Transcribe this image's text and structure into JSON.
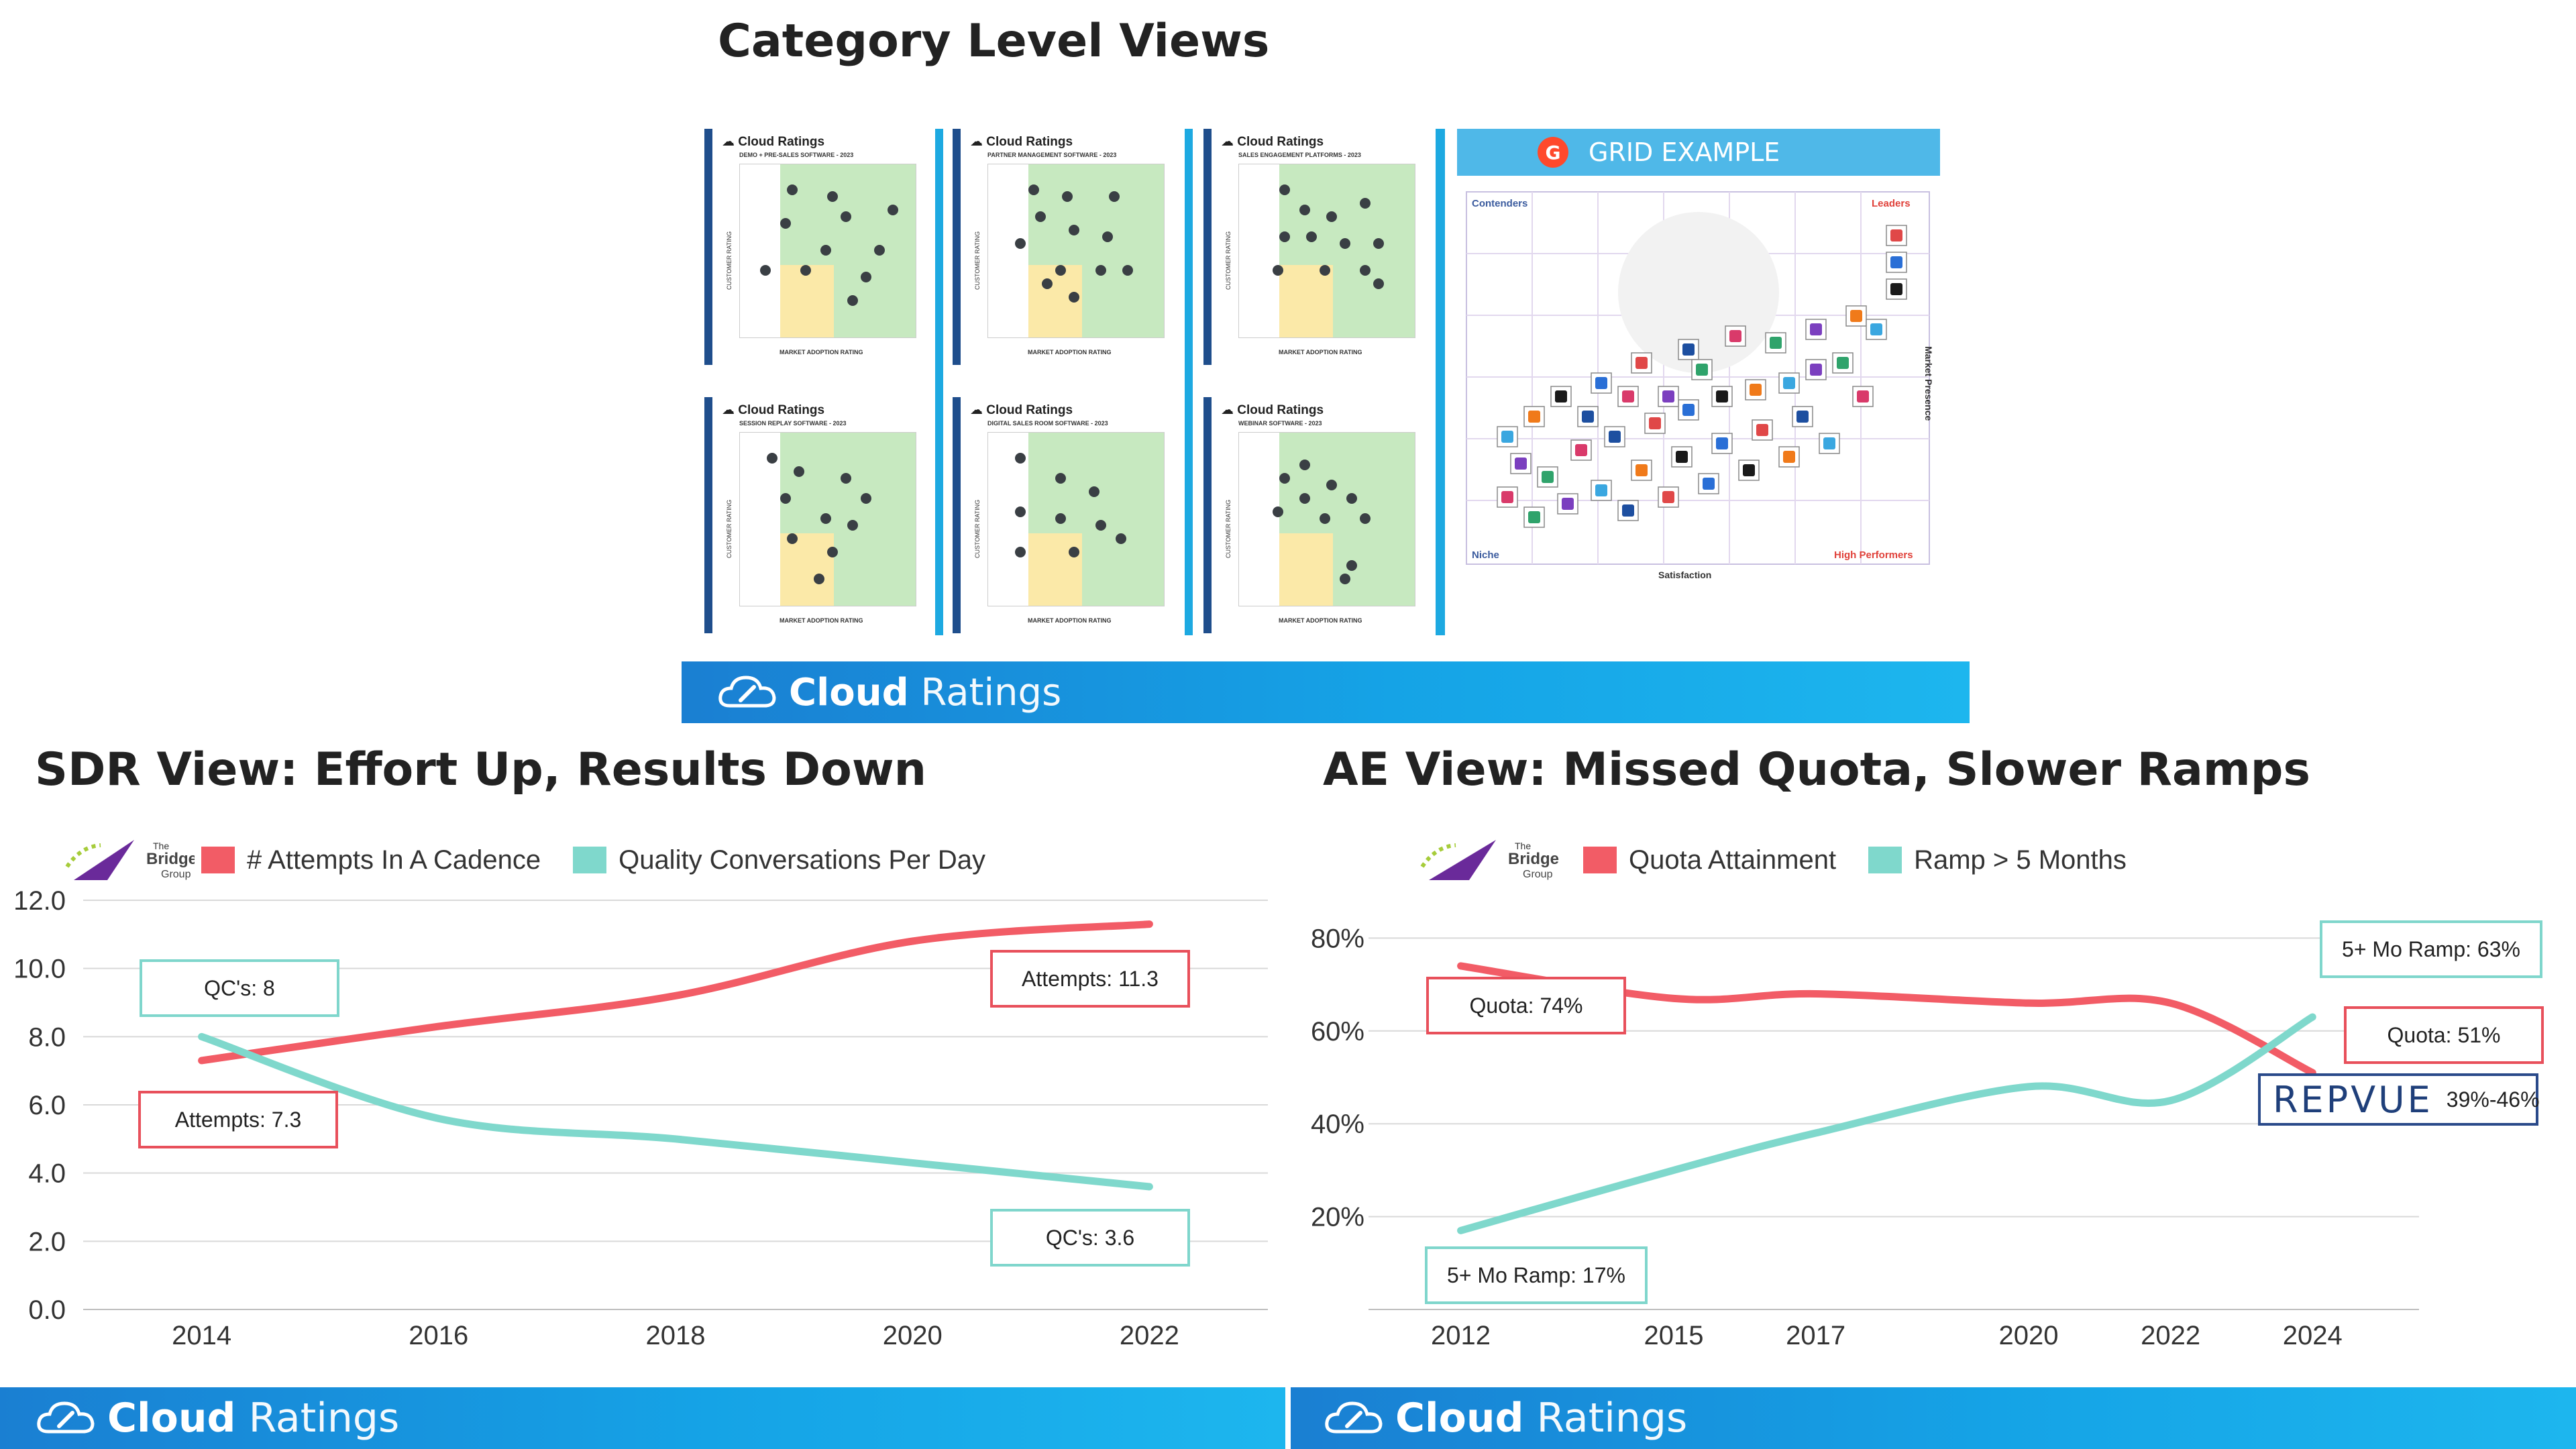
{
  "top": {
    "title": "Category Level Views",
    "panels": [
      {
        "brand": "Cloud Ratings",
        "subtitle": "DEMO + PRE-SALES SOFTWARE - 2023",
        "ylabel": "CUSTOMER RATING",
        "xlabel": "MARKET ADOPTION RATING"
      },
      {
        "brand": "Cloud Ratings",
        "subtitle": "PARTNER MANAGEMENT SOFTWARE - 2023",
        "ylabel": "CUSTOMER RATING",
        "xlabel": "MARKET ADOPTION RATING"
      },
      {
        "brand": "Cloud Ratings",
        "subtitle": "SALES ENGAGEMENT PLATFORMS - 2023",
        "ylabel": "CUSTOMER RATING",
        "xlabel": "MARKET ADOPTION RATING"
      },
      {
        "brand": "Cloud Ratings",
        "subtitle": "SESSION REPLAY SOFTWARE - 2023",
        "ylabel": "CUSTOMER RATING",
        "xlabel": "MARKET ADOPTION RATING"
      },
      {
        "brand": "Cloud Ratings",
        "subtitle": "DIGITAL SALES ROOM SOFTWARE - 2023",
        "ylabel": "CUSTOMER RATING",
        "xlabel": "MARKET ADOPTION RATING"
      },
      {
        "brand": "Cloud Ratings",
        "subtitle": "WEBINAR SOFTWARE - 2023",
        "ylabel": "CUSTOMER RATING",
        "xlabel": "MARKET ADOPTION RATING"
      }
    ],
    "grid_example": {
      "header": "GRID EXAMPLE",
      "badge": "G",
      "contenders": "Contenders",
      "leaders": "Leaders",
      "niche": "Niche",
      "high_performers": "High Performers",
      "y_axis": "Market Presence",
      "x_axis": "Satisfaction"
    },
    "banner": {
      "bold": "Cloud",
      "light": "Ratings"
    }
  },
  "sdr": {
    "title": "SDR View: Effort Up, Results Down",
    "logo": {
      "line1": "The",
      "line2": "Bridge",
      "line3": "Group"
    },
    "callouts": {
      "qc_start": "QC's: 8",
      "attempts_start": "Attempts: 7.3",
      "attempts_end": "Attempts: 11.3",
      "qc_end": "QC's: 3.6"
    },
    "banner": {
      "bold": "Cloud",
      "light": "Ratings"
    }
  },
  "ae": {
    "title": "AE View: Missed Quota, Slower Ramps",
    "logo": {
      "line1": "The",
      "line2": "Bridge",
      "line3": "Group"
    },
    "callouts": {
      "quota_start": "Quota: 74%",
      "ramp_start": "5+ Mo Ramp: 17%",
      "ramp_end": "5+ Mo Ramp: 63%",
      "quota_end": "Quota: 51%",
      "repvue_logo": "REPVUE",
      "repvue_range": "39%-46%"
    },
    "banner": {
      "bold": "Cloud",
      "light": "Ratings"
    }
  },
  "chart_data": [
    {
      "type": "line",
      "title": "SDR View: Effort Up, Results Down",
      "x": [
        2014,
        2016,
        2018,
        2020,
        2022
      ],
      "xticks": [
        "2014",
        "2016",
        "2018",
        "2020",
        "2022"
      ],
      "yticks": [
        "0.0",
        "2.0",
        "4.0",
        "6.0",
        "8.0",
        "10.0",
        "12.0"
      ],
      "ylim": [
        0,
        12
      ],
      "xlim": [
        2013,
        2023.0
      ],
      "series": [
        {
          "name": "# Attempts In A Cadence",
          "color": "#f25c66",
          "values": [
            7.3,
            8.3,
            9.2,
            10.8,
            11.3
          ]
        },
        {
          "name": "Quality Conversations Per Day",
          "color": "#7fd8cc",
          "values": [
            8.0,
            5.6,
            5.0,
            4.3,
            3.6
          ]
        }
      ],
      "legend": "top-left",
      "grid": "horizontal"
    },
    {
      "type": "line",
      "title": "AE View: Missed Quota, Slower Ramps",
      "x": [
        2012,
        2015,
        2017,
        2020,
        2022,
        2024
      ],
      "xticks": [
        "2012",
        "2015",
        "2017",
        "2020",
        "2022",
        "2024"
      ],
      "yticks": [
        "20%",
        "40%",
        "60%",
        "80%"
      ],
      "ylim": [
        0,
        100
      ],
      "series": [
        {
          "name": "Quota Attainment",
          "color": "#f25c66",
          "values": [
            74,
            67,
            68,
            66,
            66,
            51
          ]
        },
        {
          "name": "Ramp > 5 Months",
          "color": "#7fd8cc",
          "values": [
            17,
            30,
            38,
            48,
            45,
            63
          ]
        }
      ],
      "legend": "top-left",
      "grid": "horizontal"
    }
  ]
}
